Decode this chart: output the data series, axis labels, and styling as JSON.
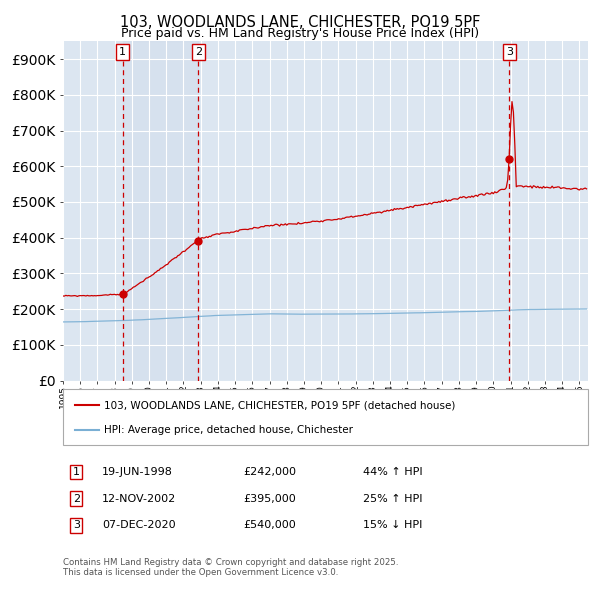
{
  "title": "103, WOODLANDS LANE, CHICHESTER, PO19 5PF",
  "subtitle": "Price paid vs. HM Land Registry's House Price Index (HPI)",
  "legend_line1": "103, WOODLANDS LANE, CHICHESTER, PO19 5PF (detached house)",
  "legend_line2": "HPI: Average price, detached house, Chichester",
  "purchases": [
    {
      "num": 1,
      "date": "19-JUN-1998",
      "price": 242000,
      "pct": "44%",
      "dir": "↑",
      "year": 1998.46
    },
    {
      "num": 2,
      "date": "12-NOV-2002",
      "price": 395000,
      "pct": "25%",
      "dir": "↑",
      "year": 2002.87
    },
    {
      "num": 3,
      "date": "07-DEC-2020",
      "price": 540000,
      "pct": "15%",
      "dir": "↓",
      "year": 2020.93
    }
  ],
  "red_color": "#cc0000",
  "blue_color": "#7aafd4",
  "shade_color": "#ccd9ea",
  "bg_color": "#dce6f1",
  "grid_color": "#ffffff",
  "footnote": "Contains HM Land Registry data © Crown copyright and database right 2025.\nThis data is licensed under the Open Government Licence v3.0.",
  "ylim": [
    0,
    950000
  ],
  "xlim": [
    1995,
    2025.5
  ],
  "yticks": [
    0,
    100000,
    200000,
    300000,
    400000,
    500000,
    600000,
    700000,
    800000,
    900000
  ],
  "ylabel_fmt": [
    "£0",
    "£100K",
    "£200K",
    "£300K",
    "£400K",
    "£500K",
    "£600K",
    "£700K",
    "£800K",
    "£900K"
  ]
}
